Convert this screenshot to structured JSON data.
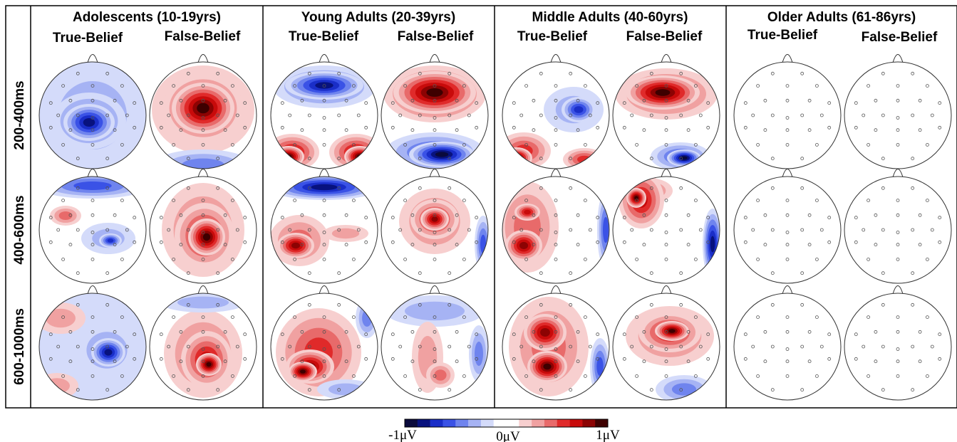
{
  "groups": [
    {
      "title": "Adolescents (10-19yrs)",
      "tb": "True-Belief",
      "fb": "False-Belief"
    },
    {
      "title": "Young Adults (20-39yrs)",
      "tb": "True-Belief",
      "fb": "False-Belief"
    },
    {
      "title": "Middle Adults (40-60yrs)",
      "tb": "True-Belief",
      "fb": "False-Belief"
    },
    {
      "title": "Older Adults (61-86yrs)",
      "tb": "True-Belief",
      "fb": "False-Belief"
    }
  ],
  "time_windows": [
    "200-400ms",
    "400-600ms",
    "600-1000ms"
  ],
  "colorbar": {
    "min_label": "-1μV",
    "mid_label": "0μV",
    "max_label": "1μV",
    "colors": [
      "#0a0a3c",
      "#08127e",
      "#1a2ec8",
      "#3a52e6",
      "#6f84ee",
      "#a6b3f4",
      "#d4dbfa",
      "#ffffff",
      "#ffffff",
      "#f7cfcf",
      "#f0a1a1",
      "#e86a6a",
      "#e02a2a",
      "#c80b0b",
      "#8c0303",
      "#3e0000"
    ]
  },
  "colors": {
    "frame": "#000000",
    "head_outline": "#333333"
  }
}
